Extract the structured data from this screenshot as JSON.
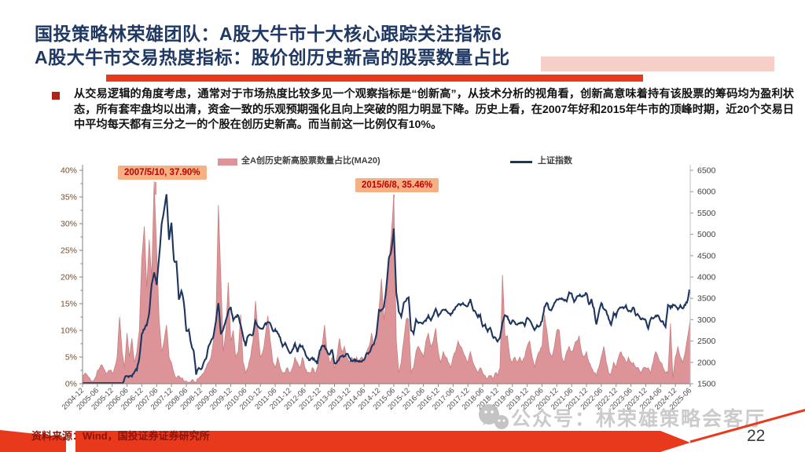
{
  "slide": {
    "title_line1": "国投策略林荣雄团队：A股大牛市十大核心跟踪关注指标6",
    "title_line2": "A股大牛市交易热度指标：股价创历史新高的股票数量占比",
    "bullet_text": "从交易逻辑的角度考虑，通常对于市场热度比较多见一个观察指标是“创新高”，从技术分析的视角看，创新高意味着持有该股票的筹码均为盈利状态，所有套牢盘均以出清，资金一致的乐观预期强化且向上突破的阻力明显下降。历史上看，在2007年好和2015年牛市的顶峰时期，近20个交易日中平均每天都有三分之一的个股在创历史新高。而当前这一比例仅有10%。",
    "footer_source": "资料来源：Wind，国投证券证券研究所",
    "page_number": "22",
    "watermark_text": "公众号：林荣雄策略会客厅"
  },
  "colors": {
    "title_navy": "#1F3864",
    "accent_red": "#E8391C",
    "bullet_red": "#B02318",
    "area_fill": "#DC9498",
    "area_stroke": "#C87F81",
    "line_navy": "#1E355E",
    "annotation_bg": "#F5B183",
    "annotation_text": "#C00000",
    "left_axis_label": "#7C4A21",
    "right_axis_label": "#3F3F3F",
    "watermark_gray": "#C4C4C4"
  },
  "chart_data": {
    "type": "combo",
    "legend": [
      "全A创历史新高股票数量占比(MA20)",
      "上证指数"
    ],
    "x_start": "2004-12",
    "x_end": "2025-06",
    "x_interval": "monthly",
    "x_tick_labels": [
      "2004-12",
      "2005-06",
      "2005-12",
      "2006-06",
      "2006-12",
      "2007-06",
      "2007-12",
      "2008-06",
      "2008-12",
      "2009-06",
      "2009-12",
      "2010-06",
      "2010-12",
      "2011-06",
      "2011-12",
      "2012-06",
      "2012-12",
      "2013-06",
      "2013-12",
      "2014-06",
      "2014-12",
      "2015-06",
      "2015-12",
      "2016-06",
      "2016-12",
      "2017-06",
      "2017-12",
      "2018-06",
      "2018-12",
      "2019-06",
      "2019-12",
      "2020-06",
      "2020-12",
      "2021-06",
      "2021-12",
      "2022-06",
      "2022-12",
      "2023-06",
      "2023-12",
      "2024-06",
      "2024-12",
      "2025-06"
    ],
    "left_axis": {
      "min": 0,
      "max": 40,
      "step": 5,
      "unit": "%"
    },
    "right_axis": {
      "min": 1500,
      "max": 6500,
      "step": 500
    },
    "annotations": [
      {
        "text": "2007/5/10, 37.90%",
        "x_month": "2007-05",
        "value_pct": 37.9
      },
      {
        "text": "2015/6/8, 35.46%",
        "x_month": "2015-06",
        "value_pct": 35.46
      }
    ],
    "series": [
      {
        "name": "全A创历史新高股票数量占比(MA20)",
        "type": "area",
        "axis": "left",
        "monthly_values_pct": [
          1.5,
          2,
          1.5,
          1,
          0.5,
          1,
          2.5,
          3,
          3.5,
          2.5,
          2,
          2.5,
          2,
          3,
          5,
          12.5,
          6,
          3,
          9.5,
          5,
          8.5,
          4,
          6,
          10,
          23.5,
          29.5,
          18,
          27,
          20,
          37.9,
          25,
          12,
          6,
          8,
          11,
          5,
          4,
          2,
          1,
          1.5,
          1,
          0.5,
          0.5,
          0.3,
          0.5,
          0.5,
          0.3,
          1,
          1.5,
          2,
          3,
          4,
          5,
          8,
          12,
          33.5,
          19.5,
          6,
          10,
          19,
          8,
          10,
          5,
          6,
          13,
          4,
          2,
          3,
          5,
          8,
          15.5,
          10,
          5,
          6,
          9,
          12.7,
          8,
          4,
          3,
          5,
          3,
          2,
          2,
          3,
          2,
          3,
          5,
          4,
          3,
          5,
          3,
          2,
          2,
          3,
          2,
          3,
          5,
          7,
          11,
          6,
          4,
          5,
          3,
          5,
          8.5,
          6,
          7,
          5,
          4,
          5,
          4,
          5,
          4,
          5,
          4,
          6,
          7,
          9.5,
          7,
          8,
          14,
          19.7,
          12,
          16,
          22,
          28,
          35.46,
          8,
          2,
          4,
          8,
          12,
          12,
          2,
          3,
          6,
          7,
          6,
          5,
          8,
          9.5,
          7,
          8,
          10.4,
          6,
          4,
          6,
          5,
          4,
          3,
          5,
          6,
          8,
          7,
          6,
          5,
          4,
          6,
          4,
          3,
          2,
          3,
          2,
          1.5,
          1,
          1.5,
          1,
          2,
          1.5,
          3,
          20.4,
          9,
          9,
          5,
          4,
          5,
          4,
          5,
          4,
          5,
          7,
          8,
          5,
          3,
          5,
          6,
          7,
          13,
          10,
          6,
          5,
          7,
          10,
          10,
          5,
          4,
          6,
          7,
          6,
          7,
          8,
          9,
          6,
          5,
          6,
          4,
          3,
          2,
          1.5,
          3,
          5,
          7,
          4,
          2,
          2,
          4,
          3,
          5,
          6,
          5,
          4,
          5,
          4,
          4,
          3,
          3,
          2,
          3,
          3,
          3,
          2,
          4,
          6,
          5,
          4,
          3,
          2,
          2,
          11.3,
          1,
          5,
          7,
          5,
          4,
          6,
          9,
          12
        ]
      },
      {
        "name": "上证指数",
        "type": "line",
        "axis": "right",
        "monthly_values": [
          1270,
          1190,
          1300,
          1180,
          1160,
          1060,
          1080,
          1080,
          1160,
          1210,
          1100,
          1100,
          1160,
          1260,
          1300,
          1300,
          1440,
          1640,
          1670,
          1680,
          1660,
          1790,
          1840,
          2100,
          2675,
          2790,
          2880,
          3180,
          3840,
          4110,
          3820,
          4470,
          5220,
          5550,
          5955,
          4870,
          5260,
          4380,
          4350,
          3470,
          3690,
          3430,
          2740,
          2780,
          2400,
          2290,
          1730,
          1870,
          1820,
          2000,
          2080,
          2370,
          2480,
          2630,
          2960,
          3410,
          2680,
          2780,
          2990,
          3200,
          3280,
          2990,
          3050,
          3110,
          2870,
          2590,
          2400,
          2640,
          2640,
          2660,
          2980,
          2820,
          2810,
          2790,
          2900,
          2930,
          2910,
          2740,
          2760,
          2700,
          2570,
          2360,
          2470,
          2330,
          2200,
          2290,
          2430,
          2260,
          2400,
          2370,
          2230,
          2100,
          2050,
          2090,
          2070,
          1980,
          2270,
          2390,
          2370,
          2240,
          2180,
          2300,
          1980,
          1990,
          2100,
          2170,
          2140,
          2220,
          2110,
          2030,
          2060,
          2030,
          2030,
          2040,
          2050,
          2200,
          2220,
          2360,
          2420,
          2680,
          3235,
          3210,
          3310,
          3750,
          4440,
          4610,
          5120,
          3660,
          3210,
          3050,
          3380,
          3450,
          3540,
          2740,
          2690,
          3000,
          2940,
          2910,
          2930,
          2980,
          3085,
          3000,
          3100,
          3250,
          3100,
          3160,
          3240,
          3220,
          3150,
          3120,
          3190,
          3270,
          3360,
          3350,
          3390,
          3320,
          3310,
          3480,
          3260,
          3170,
          3080,
          3095,
          2850,
          2880,
          2725,
          2820,
          2600,
          2590,
          2490,
          2600,
          2940,
          3090,
          3080,
          2900,
          2980,
          2930,
          2890,
          2920,
          2930,
          2870,
          3050,
          2980,
          2880,
          2750,
          2860,
          2850,
          2980,
          3310,
          3400,
          3220,
          3225,
          3390,
          3470,
          3480,
          3510,
          3440,
          3450,
          3615,
          3590,
          3400,
          3540,
          3570,
          3550,
          3560,
          3640,
          3360,
          3460,
          3250,
          2890,
          3190,
          3400,
          3250,
          3200,
          3020,
          2890,
          3150,
          3090,
          3250,
          3280,
          3270,
          3320,
          3200,
          3200,
          3290,
          3120,
          3110,
          3020,
          3030,
          2970,
          2790,
          3020,
          3040,
          3100,
          3090,
          2970,
          2940,
          2820,
          3340,
          3280,
          3330,
          3350,
          3250,
          3320,
          3280,
          3350,
          3450,
          3870
        ]
      }
    ]
  }
}
